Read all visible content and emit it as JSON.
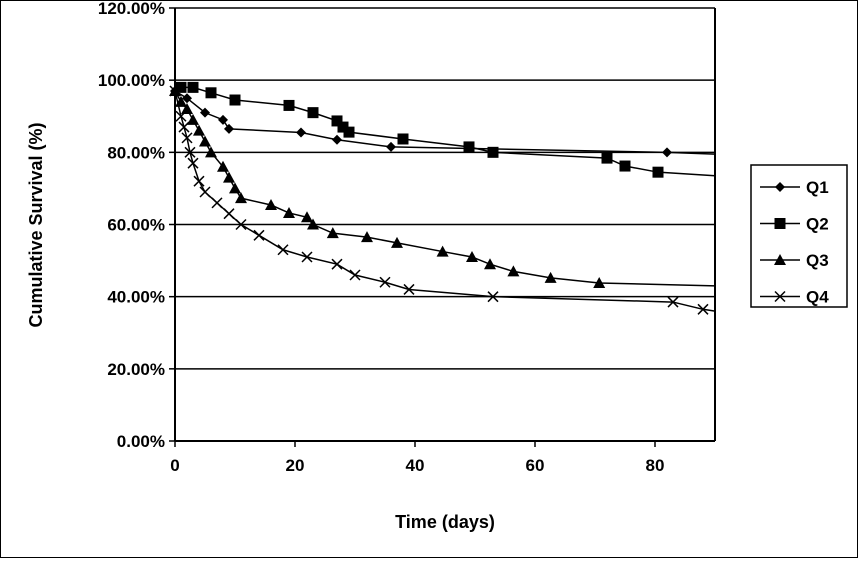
{
  "chart_data": {
    "type": "line",
    "title": "",
    "xlabel": "Time (days)",
    "ylabel": "Cumulative Survival (%)",
    "xlim": [
      0,
      90
    ],
    "ylim": [
      0,
      120
    ],
    "xticks": [
      0,
      20,
      40,
      60,
      80
    ],
    "xtick_labels": [
      "0",
      "20",
      "40",
      "60",
      "80"
    ],
    "yticks": [
      0,
      20,
      40,
      60,
      80,
      100,
      120
    ],
    "ytick_labels": [
      "0.00%",
      "20.00%",
      "40.00%",
      "60.00%",
      "80.00%",
      "100.00%",
      "120.00%"
    ],
    "grid": "horizontal",
    "legend_position": "right",
    "series": [
      {
        "name": "Q1",
        "marker": "diamond",
        "points": [
          [
            0,
            97
          ],
          [
            2,
            95
          ],
          [
            5,
            91
          ],
          [
            8,
            89
          ],
          [
            9,
            86.5
          ],
          [
            21,
            85.5
          ],
          [
            27,
            83.5
          ],
          [
            36,
            81.5
          ],
          [
            82,
            80
          ]
        ],
        "end": [
          90,
          79.5
        ]
      },
      {
        "name": "Q2",
        "marker": "square",
        "points": [
          [
            1,
            98
          ],
          [
            3,
            98
          ],
          [
            6,
            96.5
          ],
          [
            10,
            94.5
          ],
          [
            19,
            93
          ],
          [
            23,
            91
          ],
          [
            27,
            88.7
          ],
          [
            28,
            87
          ],
          [
            29,
            85.6
          ],
          [
            38,
            83.7
          ],
          [
            49,
            81.5
          ],
          [
            53,
            80
          ],
          [
            72,
            78.4
          ],
          [
            75,
            76.2
          ],
          [
            80.5,
            74.5
          ]
        ],
        "end": [
          90,
          73.5
        ]
      },
      {
        "name": "Q3",
        "marker": "triangle",
        "points": [
          [
            0,
            97
          ],
          [
            1,
            94
          ],
          [
            2,
            92
          ],
          [
            3,
            89
          ],
          [
            4,
            86
          ],
          [
            5,
            83
          ],
          [
            6,
            80
          ],
          [
            8,
            76
          ],
          [
            9,
            73
          ],
          [
            10,
            70
          ],
          [
            11,
            67.3
          ],
          [
            16,
            65.4
          ],
          [
            19,
            63.2
          ],
          [
            22,
            62
          ],
          [
            23,
            60
          ],
          [
            26.3,
            57.6
          ],
          [
            32,
            56.5
          ],
          [
            37,
            54.9
          ],
          [
            44.6,
            52.5
          ],
          [
            49.5,
            51
          ],
          [
            52.5,
            49
          ],
          [
            56.4,
            47
          ],
          [
            62.6,
            45.2
          ],
          [
            70.7,
            43.8
          ]
        ],
        "end": [
          90,
          43
        ]
      },
      {
        "name": "Q4",
        "marker": "x",
        "points": [
          [
            0,
            97
          ],
          [
            1,
            90
          ],
          [
            1.5,
            87
          ],
          [
            2,
            84
          ],
          [
            2.5,
            80
          ],
          [
            3,
            77
          ],
          [
            4,
            72
          ],
          [
            5,
            69
          ],
          [
            7,
            66
          ],
          [
            9,
            63
          ],
          [
            11,
            60
          ],
          [
            14,
            57
          ],
          [
            18,
            53
          ],
          [
            22,
            51
          ],
          [
            27,
            49
          ],
          [
            30,
            46
          ],
          [
            35,
            44
          ],
          [
            39,
            42
          ],
          [
            53,
            40
          ],
          [
            83,
            38.5
          ],
          [
            88,
            36.5
          ]
        ],
        "end": [
          90,
          36
        ]
      }
    ]
  }
}
